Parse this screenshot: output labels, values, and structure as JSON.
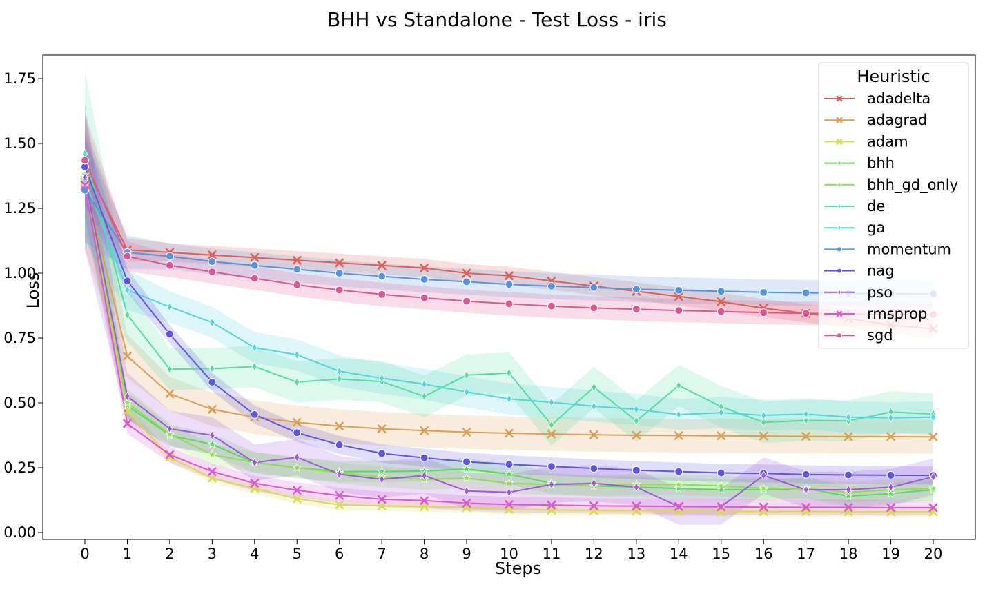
{
  "chart_data": {
    "type": "line",
    "title": "BHH vs Standalone - Test Loss - iris",
    "xlabel": "Steps",
    "ylabel": "Loss",
    "x": [
      0,
      1,
      2,
      3,
      4,
      5,
      6,
      7,
      8,
      9,
      10,
      11,
      12,
      13,
      14,
      15,
      16,
      17,
      18,
      19,
      20
    ],
    "x_ticks": [
      "0",
      "1",
      "2",
      "3",
      "4",
      "5",
      "6",
      "7",
      "8",
      "9",
      "10",
      "11",
      "12",
      "13",
      "14",
      "15",
      "16",
      "17",
      "18",
      "19",
      "20"
    ],
    "y_ticks": [
      "0.00",
      "0.25",
      "0.50",
      "0.75",
      "1.00",
      "1.25",
      "1.50",
      "1.75"
    ],
    "ylim": [
      -0.03,
      1.85
    ],
    "xlim": [
      0,
      21
    ],
    "grid": false,
    "legend": {
      "title": "Heuristic",
      "placement": "top-right"
    },
    "series": [
      {
        "name": "adadelta",
        "color": "#db5f57",
        "marker": "x",
        "values": [
          1.42,
          1.09,
          1.08,
          1.07,
          1.06,
          1.05,
          1.04,
          1.03,
          1.02,
          1.0,
          0.99,
          0.97,
          0.95,
          0.93,
          0.91,
          0.89,
          0.865,
          0.845,
          0.825,
          0.8,
          0.785
        ],
        "band": 0.035
      },
      {
        "name": "adagrad",
        "color": "#db9e57",
        "marker": "x",
        "values": [
          1.35,
          0.68,
          0.535,
          0.475,
          0.445,
          0.425,
          0.41,
          0.4,
          0.393,
          0.387,
          0.383,
          0.38,
          0.377,
          0.375,
          0.374,
          0.373,
          0.372,
          0.371,
          0.37,
          0.37,
          0.369
        ],
        "band": 0.065
      },
      {
        "name": "adam",
        "color": "#d3db57",
        "marker": "x",
        "values": [
          1.36,
          0.47,
          0.29,
          0.21,
          0.17,
          0.13,
          0.107,
          0.103,
          0.1,
          0.097,
          0.09,
          0.087,
          0.085,
          0.084,
          0.083,
          0.082,
          0.081,
          0.081,
          0.08,
          0.08,
          0.08
        ],
        "band": 0.02
      },
      {
        "name": "bhh",
        "color": "#57db5f",
        "marker": "*",
        "values": [
          1.38,
          0.49,
          0.375,
          0.34,
          0.27,
          0.25,
          0.235,
          0.235,
          0.237,
          0.245,
          0.225,
          0.19,
          0.18,
          0.175,
          0.17,
          0.165,
          0.165,
          0.17,
          0.14,
          0.15,
          0.165
        ],
        "band": 0.04
      },
      {
        "name": "bhh_gd_only",
        "color": "#93db57",
        "marker": "*",
        "values": [
          1.35,
          0.5,
          0.38,
          0.3,
          0.27,
          0.25,
          0.23,
          0.215,
          0.205,
          0.21,
          0.19,
          0.185,
          0.18,
          0.185,
          0.185,
          0.18,
          0.17,
          0.17,
          0.155,
          0.165,
          0.17
        ],
        "band": 0.04
      },
      {
        "name": "de",
        "color": "#57db9e",
        "marker": "d",
        "values": [
          1.46,
          0.84,
          0.63,
          0.632,
          0.64,
          0.58,
          0.592,
          0.582,
          0.525,
          0.607,
          0.615,
          0.415,
          0.56,
          0.43,
          0.567,
          0.485,
          0.425,
          0.432,
          0.43,
          0.465,
          0.457
        ],
        "band": 0.08
      },
      {
        "name": "ga",
        "color": "#57d3db",
        "marker": "d",
        "values": [
          1.36,
          0.935,
          0.87,
          0.81,
          0.713,
          0.685,
          0.622,
          0.595,
          0.572,
          0.542,
          0.515,
          0.502,
          0.487,
          0.475,
          0.455,
          0.462,
          0.452,
          0.457,
          0.445,
          0.442,
          0.445
        ],
        "band": 0.06
      },
      {
        "name": "momentum",
        "color": "#5793db",
        "marker": "o",
        "values": [
          1.32,
          1.08,
          1.065,
          1.045,
          1.03,
          1.015,
          1.0,
          0.988,
          0.976,
          0.967,
          0.957,
          0.95,
          0.945,
          0.938,
          0.934,
          0.93,
          0.926,
          0.924,
          0.922,
          0.921,
          0.92
        ],
        "band": 0.05
      },
      {
        "name": "nag",
        "color": "#5f57db",
        "marker": "o",
        "values": [
          1.41,
          0.97,
          0.765,
          0.58,
          0.455,
          0.385,
          0.338,
          0.305,
          0.288,
          0.273,
          0.263,
          0.255,
          0.247,
          0.24,
          0.235,
          0.23,
          0.228,
          0.224,
          0.222,
          0.221,
          0.22
        ],
        "band": 0.035
      },
      {
        "name": "pso",
        "color": "#9e57db",
        "marker": "d",
        "values": [
          1.37,
          0.525,
          0.4,
          0.375,
          0.27,
          0.29,
          0.225,
          0.205,
          0.22,
          0.16,
          0.155,
          0.185,
          0.19,
          0.175,
          0.1,
          0.1,
          0.22,
          0.165,
          0.165,
          0.175,
          0.215
        ],
        "band": 0.07
      },
      {
        "name": "rmsprop",
        "color": "#db57d3",
        "marker": "x",
        "values": [
          1.34,
          0.42,
          0.3,
          0.235,
          0.19,
          0.163,
          0.143,
          0.128,
          0.123,
          0.113,
          0.108,
          0.106,
          0.103,
          0.102,
          0.1,
          0.099,
          0.098,
          0.097,
          0.097,
          0.096,
          0.096
        ],
        "band": 0.03
      },
      {
        "name": "sgd",
        "color": "#db5793",
        "marker": "o",
        "values": [
          1.435,
          1.065,
          1.03,
          1.005,
          0.98,
          0.955,
          0.935,
          0.918,
          0.905,
          0.892,
          0.882,
          0.873,
          0.866,
          0.861,
          0.856,
          0.852,
          0.848,
          0.845,
          0.843,
          0.841,
          0.84
        ],
        "band": 0.045
      }
    ]
  }
}
